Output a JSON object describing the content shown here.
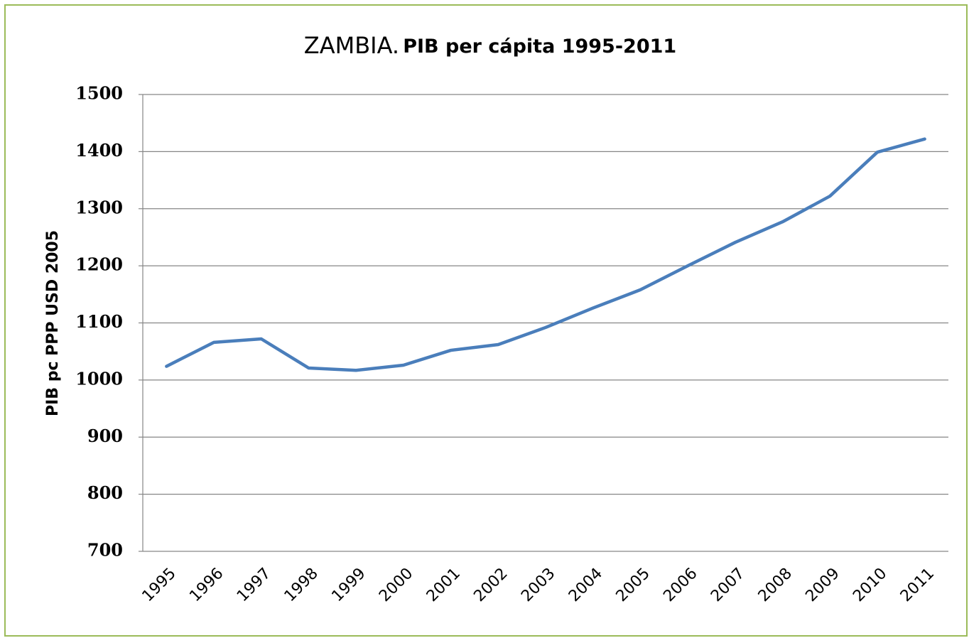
{
  "chart_data": {
    "type": "line",
    "title": "ZAMBIA.",
    "subtitle": "PIB per cápita 1995-2011",
    "y_label": "PIB pc PPP USD 2005",
    "categories": [
      "1995",
      "1996",
      "1997",
      "1998",
      "1999",
      "2000",
      "2001",
      "2002",
      "2003",
      "2004",
      "2005",
      "2006",
      "2007",
      "2008",
      "2009",
      "2010",
      "2011"
    ],
    "series": [
      {
        "name": "Zambia",
        "color": "#4a7ebb",
        "values": [
          1024,
          1066,
          1072,
          1021,
          1017,
          1026,
          1052,
          1062,
          1092,
          1126,
          1158,
          1200,
          1241,
          1277,
          1322,
          1399,
          1422
        ]
      }
    ],
    "ylim": [
      700,
      1500
    ],
    "yticks": [
      700,
      800,
      900,
      1000,
      1100,
      1200,
      1300,
      1400,
      1500
    ],
    "grid": true,
    "legend": false
  }
}
